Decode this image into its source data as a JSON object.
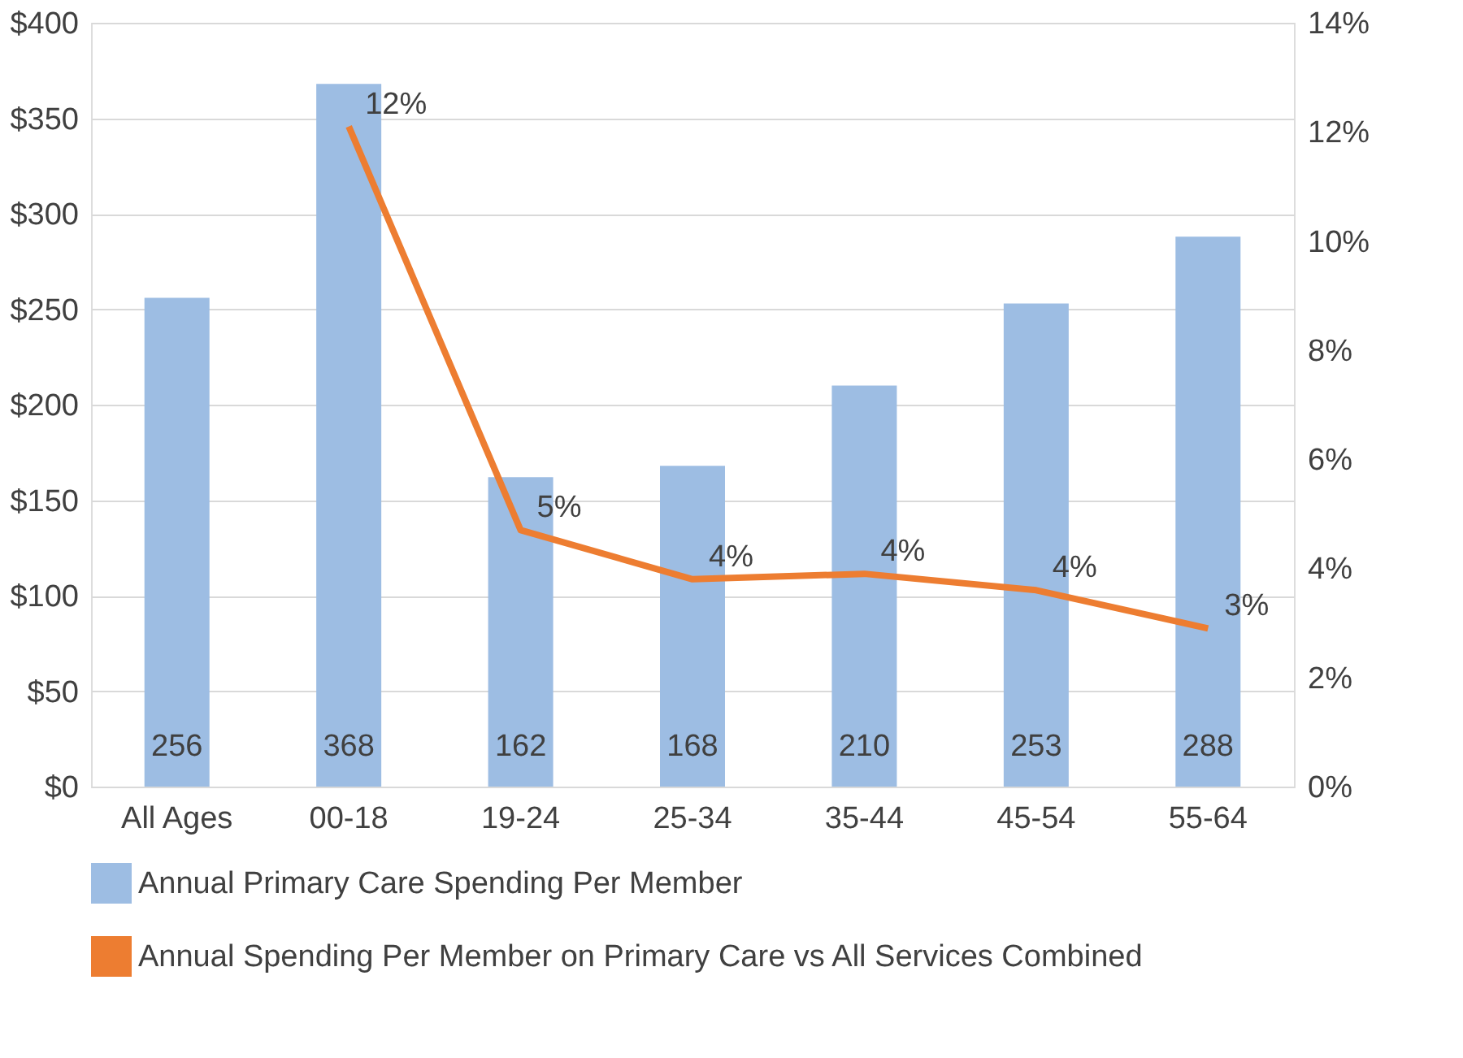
{
  "chart_data": {
    "type": "bar",
    "categories": [
      "All Ages",
      "00-18",
      "19-24",
      "25-34",
      "35-44",
      "45-54",
      "55-64"
    ],
    "series": [
      {
        "name": "Annual Primary Care Spending Per Member",
        "color": "#9dbde3",
        "values": [
          256,
          368,
          162,
          168,
          210,
          253,
          288
        ],
        "value_labels": [
          "256",
          "368",
          "162",
          "168",
          "210",
          "253",
          "288"
        ]
      },
      {
        "name": "Annual Spending Per Member on Primary Care vs All Services Combined",
        "type": "line",
        "axis": "y2",
        "color": "#ed7d31",
        "values": [
          null,
          12.1,
          4.7,
          3.8,
          3.9,
          3.6,
          2.9
        ],
        "value_labels": [
          null,
          "12%",
          "5%",
          "4%",
          "4%",
          "4%",
          "3%"
        ]
      }
    ],
    "ylim": [
      0,
      400
    ],
    "yticks": [
      {
        "value": 0,
        "label": "$0"
      },
      {
        "value": 50,
        "label": "$50"
      },
      {
        "value": 100,
        "label": "$100"
      },
      {
        "value": 150,
        "label": "$150"
      },
      {
        "value": 200,
        "label": "$200"
      },
      {
        "value": 250,
        "label": "$250"
      },
      {
        "value": 300,
        "label": "$300"
      },
      {
        "value": 350,
        "label": "$350"
      },
      {
        "value": 400,
        "label": "$400"
      }
    ],
    "y2lim": [
      0,
      14
    ],
    "y2ticks": [
      {
        "value": 0,
        "label": "0%"
      },
      {
        "value": 2,
        "label": "2%"
      },
      {
        "value": 4,
        "label": "4%"
      },
      {
        "value": 6,
        "label": "6%"
      },
      {
        "value": 8,
        "label": "8%"
      },
      {
        "value": 10,
        "label": "10%"
      },
      {
        "value": 12,
        "label": "12%"
      },
      {
        "value": 14,
        "label": "14%"
      }
    ],
    "grid": "y",
    "legend": "bottom",
    "line_style": "solid",
    "marker": "none"
  }
}
